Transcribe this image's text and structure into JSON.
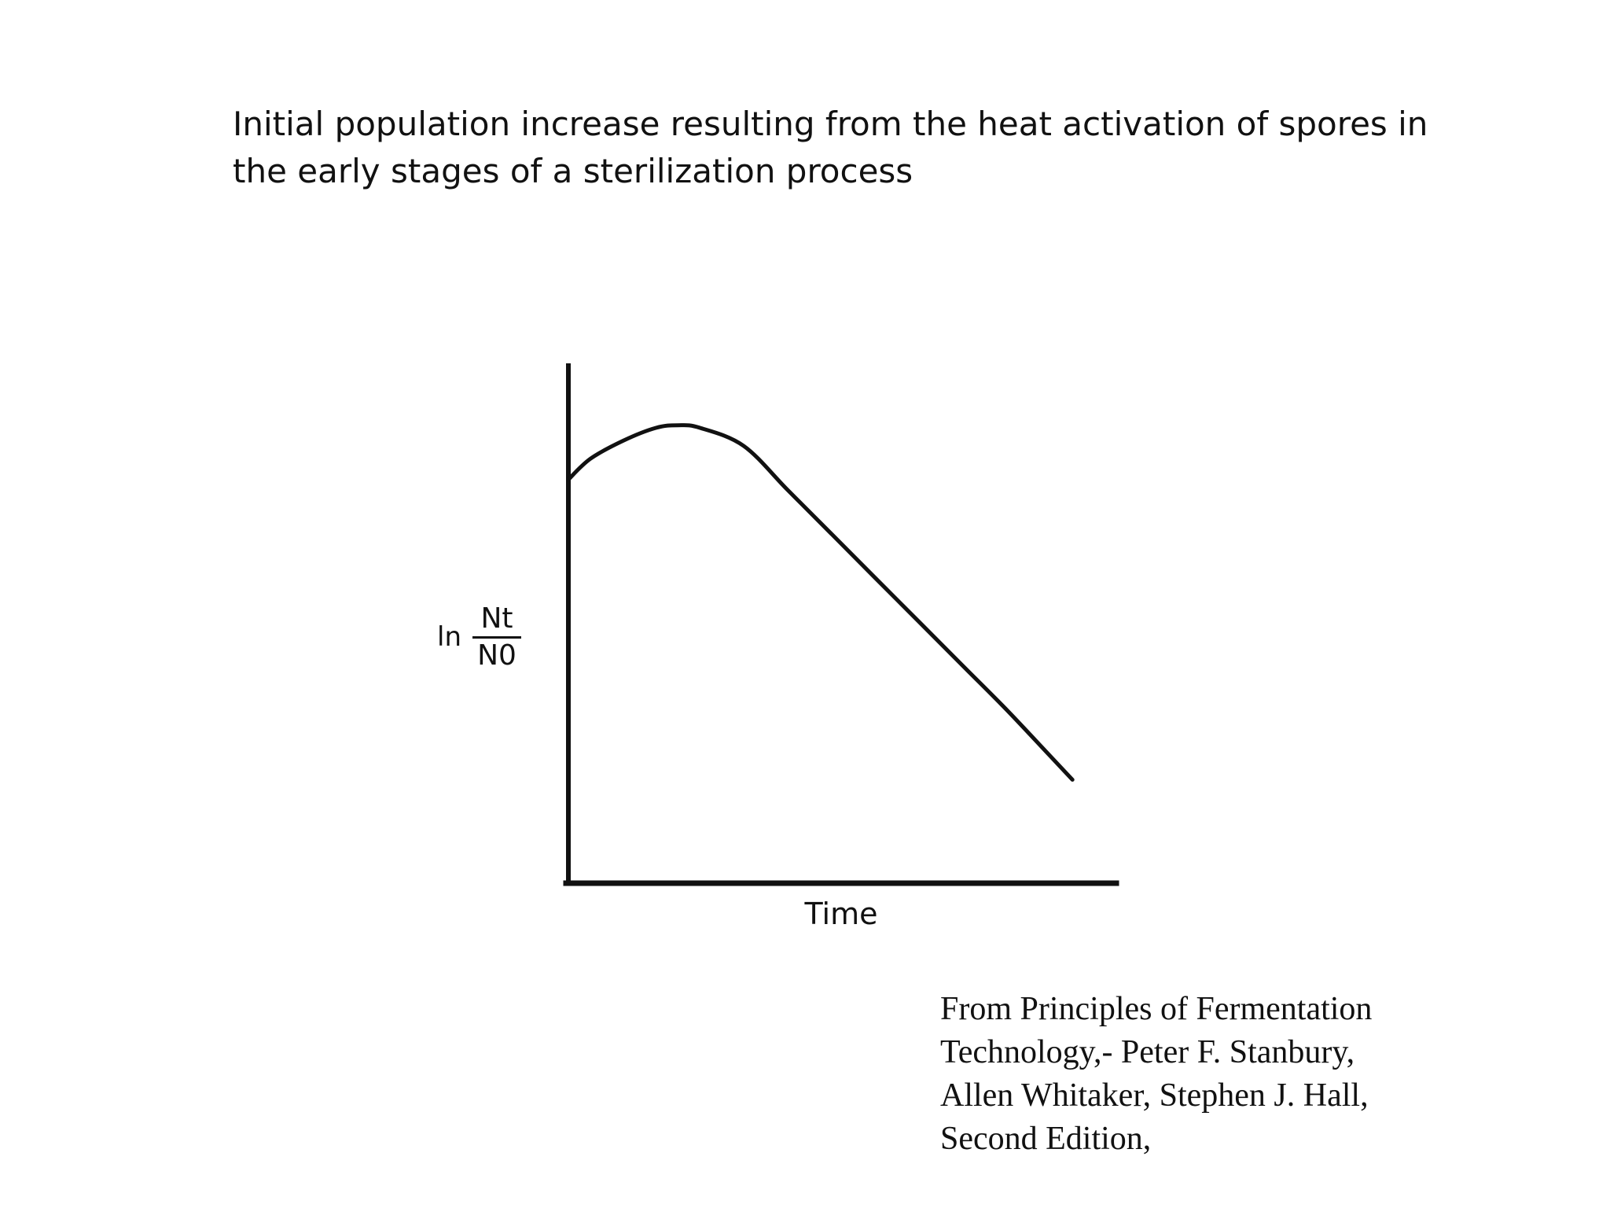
{
  "title": {
    "line1": "Initial population increase resulting from the heat activation of spores in",
    "line2": "the early stages of a sterilization process"
  },
  "chart_data": {
    "type": "line",
    "title": "",
    "xlabel": "Time",
    "ylabel": {
      "function": "ln",
      "numerator": "Nt",
      "denominator": "N0"
    },
    "series": [
      {
        "x": [
          0,
          0.2,
          0.5,
          0.8,
          1.0,
          1.2,
          1.6,
          2.0,
          2.4,
          2.8,
          3.2,
          3.6,
          4.0,
          4.4,
          4.6
        ],
        "y": [
          7.8,
          8.2,
          8.55,
          8.8,
          8.85,
          8.8,
          8.45,
          7.6,
          6.75,
          5.9,
          5.05,
          4.2,
          3.35,
          2.45,
          2.0
        ]
      }
    ],
    "xlim": [
      0,
      5.0
    ],
    "ylim": [
      0,
      10
    ],
    "grid": false,
    "legend": "none",
    "ticks": "none"
  },
  "citation": {
    "line1": "From Principles of Fermentation",
    "line2": "Technology,- Peter F. Stanbury,",
    "line3": "Allen Whitaker, Stephen J. Hall,",
    "line4": "Second Edition,"
  },
  "colors": {
    "ink": "#111111",
    "background": "#ffffff"
  }
}
